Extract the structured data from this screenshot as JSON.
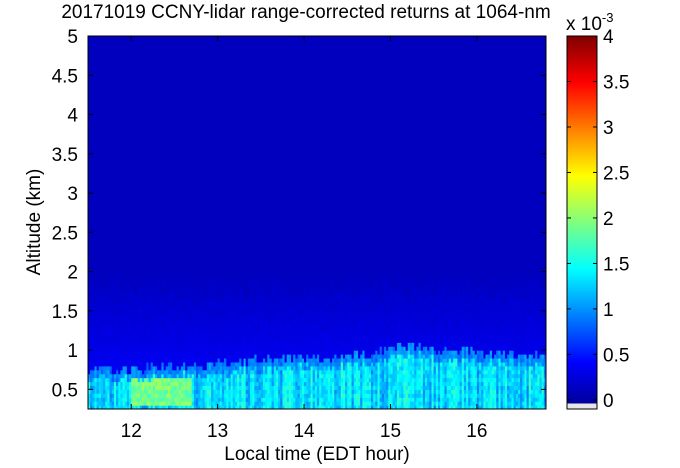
{
  "chart_data": {
    "type": "heatmap",
    "title": "20171019 CCNY-lidar range-corrected returns at 1064-nm",
    "xlabel": "Local time (EDT hour)",
    "ylabel": "Altitude (km)",
    "xlim": [
      11.5,
      16.8
    ],
    "ylim": [
      0.25,
      5.0
    ],
    "x_ticks": [
      12,
      13,
      14,
      15,
      16
    ],
    "x_tick_labels": [
      "12",
      "13",
      "14",
      "15",
      "16"
    ],
    "y_ticks": [
      0.5,
      1,
      1.5,
      2,
      2.5,
      3,
      3.5,
      4,
      4.5,
      5
    ],
    "y_tick_labels": [
      "0.5",
      "1",
      "1.5",
      "2",
      "2.5",
      "3",
      "3.5",
      "4",
      "4.5",
      "5"
    ],
    "colorbar": {
      "colormap": "jet",
      "range": [
        -0.1,
        4
      ],
      "ticks": [
        0,
        0.5,
        1,
        1.5,
        2,
        2.5,
        3,
        3.5,
        4
      ],
      "tick_labels": [
        "0",
        "0.5",
        "1",
        "1.5",
        "2",
        "2.5",
        "3",
        "3.5",
        "4"
      ],
      "multiplier_base": "x 10",
      "multiplier_exponent": "-3"
    },
    "background_level": 0.15,
    "boundary_layer_top_km": [
      [
        11.5,
        0.72
      ],
      [
        12.0,
        0.74
      ],
      [
        12.5,
        0.78
      ],
      [
        13.0,
        0.8
      ],
      [
        13.5,
        0.85
      ],
      [
        14.0,
        0.88
      ],
      [
        14.5,
        0.9
      ],
      [
        15.0,
        0.98
      ],
      [
        15.3,
        1.05
      ],
      [
        15.5,
        1.0
      ],
      [
        16.0,
        0.95
      ],
      [
        16.5,
        0.92
      ],
      [
        16.8,
        0.9
      ]
    ],
    "boundary_layer_level": 1.3,
    "peak_region": {
      "x": [
        12.0,
        12.7
      ],
      "y": [
        0.3,
        0.6
      ],
      "level": 1.9
    }
  }
}
